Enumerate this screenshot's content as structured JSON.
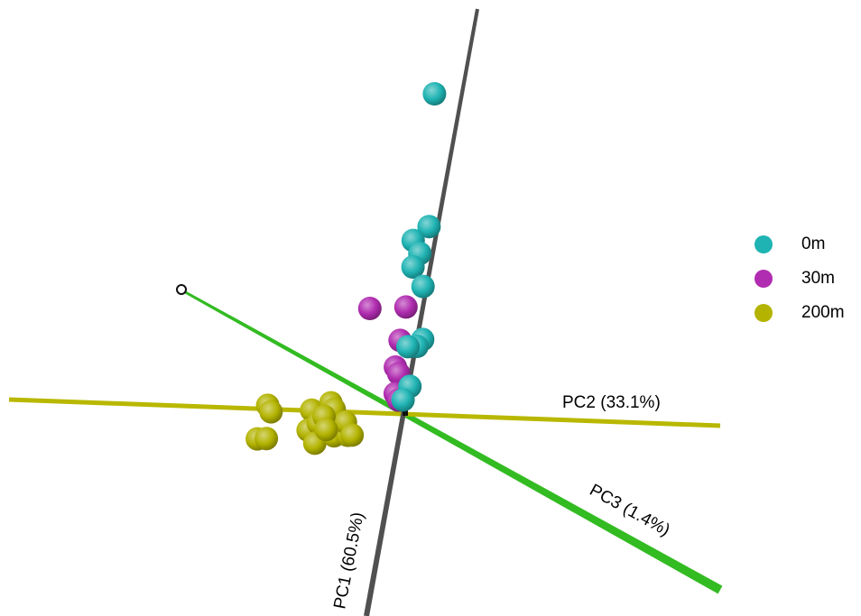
{
  "chart_data": {
    "type": "scatter",
    "view": "3d-pca-biplot",
    "axes": [
      {
        "key": "pc1",
        "label": "PC1 (60.5%)",
        "color": "#505050"
      },
      {
        "key": "pc2",
        "label": "PC2 (33.1%)",
        "color": "#b8b800"
      },
      {
        "key": "pc3",
        "label": "PC3 (1.4%)",
        "color": "#33bb22"
      }
    ],
    "series": [
      {
        "name": "0m",
        "color": "#1fb3b3",
        "points": [
          {
            "pc1": 4.8,
            "pc2": -0.6,
            "pc3": 0
          },
          {
            "pc1": 2.8,
            "pc2": -0.2,
            "pc3": 0
          },
          {
            "pc1": 2.6,
            "pc2": -0.5,
            "pc3": 0
          },
          {
            "pc1": 2.4,
            "pc2": -0.3,
            "pc3": 0
          },
          {
            "pc1": 2.2,
            "pc2": -0.4,
            "pc3": 0
          },
          {
            "pc1": 1.9,
            "pc2": -0.1,
            "pc3": 0
          },
          {
            "pc1": 1.1,
            "pc2": 0.1,
            "pc3": 0
          },
          {
            "pc1": 1.0,
            "pc2": 0.0,
            "pc3": 0
          },
          {
            "pc1": 1.0,
            "pc2": -0.2,
            "pc3": 0
          },
          {
            "pc1": 0.4,
            "pc2": 0.0,
            "pc3": 0
          },
          {
            "pc1": 0.2,
            "pc2": -0.1,
            "pc3": 0
          }
        ]
      },
      {
        "name": "30m",
        "color": "#b02cb0",
        "points": [
          {
            "pc1": 1.6,
            "pc2": -1.2,
            "pc3": 0
          },
          {
            "pc1": 1.6,
            "pc2": -0.4,
            "pc3": 0
          },
          {
            "pc1": 1.1,
            "pc2": -0.4,
            "pc3": 0
          },
          {
            "pc1": 0.7,
            "pc2": -0.4,
            "pc3": 0
          },
          {
            "pc1": 0.6,
            "pc2": -0.3,
            "pc3": 0
          },
          {
            "pc1": 0.3,
            "pc2": -0.3,
            "pc3": 0
          },
          {
            "pc1": 0.2,
            "pc2": -0.2,
            "pc3": 0
          }
        ]
      },
      {
        "name": "200m",
        "color": "#b3b300",
        "points": [
          {
            "pc1": 0.2,
            "pc2": -3.1,
            "pc3": 0
          },
          {
            "pc1": 0.1,
            "pc2": -3.0,
            "pc3": 0
          },
          {
            "pc1": -0.3,
            "pc2": -3.2,
            "pc3": 0
          },
          {
            "pc1": -0.3,
            "pc2": -3.0,
            "pc3": 0
          },
          {
            "pc1": 0.1,
            "pc2": -2.1,
            "pc3": 0
          },
          {
            "pc1": -0.2,
            "pc2": -2.1,
            "pc3": 0
          },
          {
            "pc1": 0.2,
            "pc2": -1.7,
            "pc3": 0
          },
          {
            "pc1": 0.1,
            "pc2": -1.6,
            "pc3": 0
          },
          {
            "pc1": -0.2,
            "pc2": -1.5,
            "pc3": 0
          },
          {
            "pc1": -0.1,
            "pc2": -1.9,
            "pc3": 0
          },
          {
            "pc1": -0.4,
            "pc2": -1.9,
            "pc3": 0
          },
          {
            "pc1": -0.3,
            "pc2": -1.5,
            "pc3": 0
          },
          {
            "pc1": -0.3,
            "pc2": -1.2,
            "pc3": 0
          },
          {
            "pc1": -0.1,
            "pc2": -1.3,
            "pc3": 0
          },
          {
            "pc1": -0.3,
            "pc2": -1.1,
            "pc3": 0
          },
          {
            "pc1": 0.0,
            "pc2": -1.8,
            "pc3": 0
          },
          {
            "pc1": -0.2,
            "pc2": -1.7,
            "pc3": 0
          }
        ]
      }
    ],
    "legend_position": "right",
    "grid": false
  }
}
